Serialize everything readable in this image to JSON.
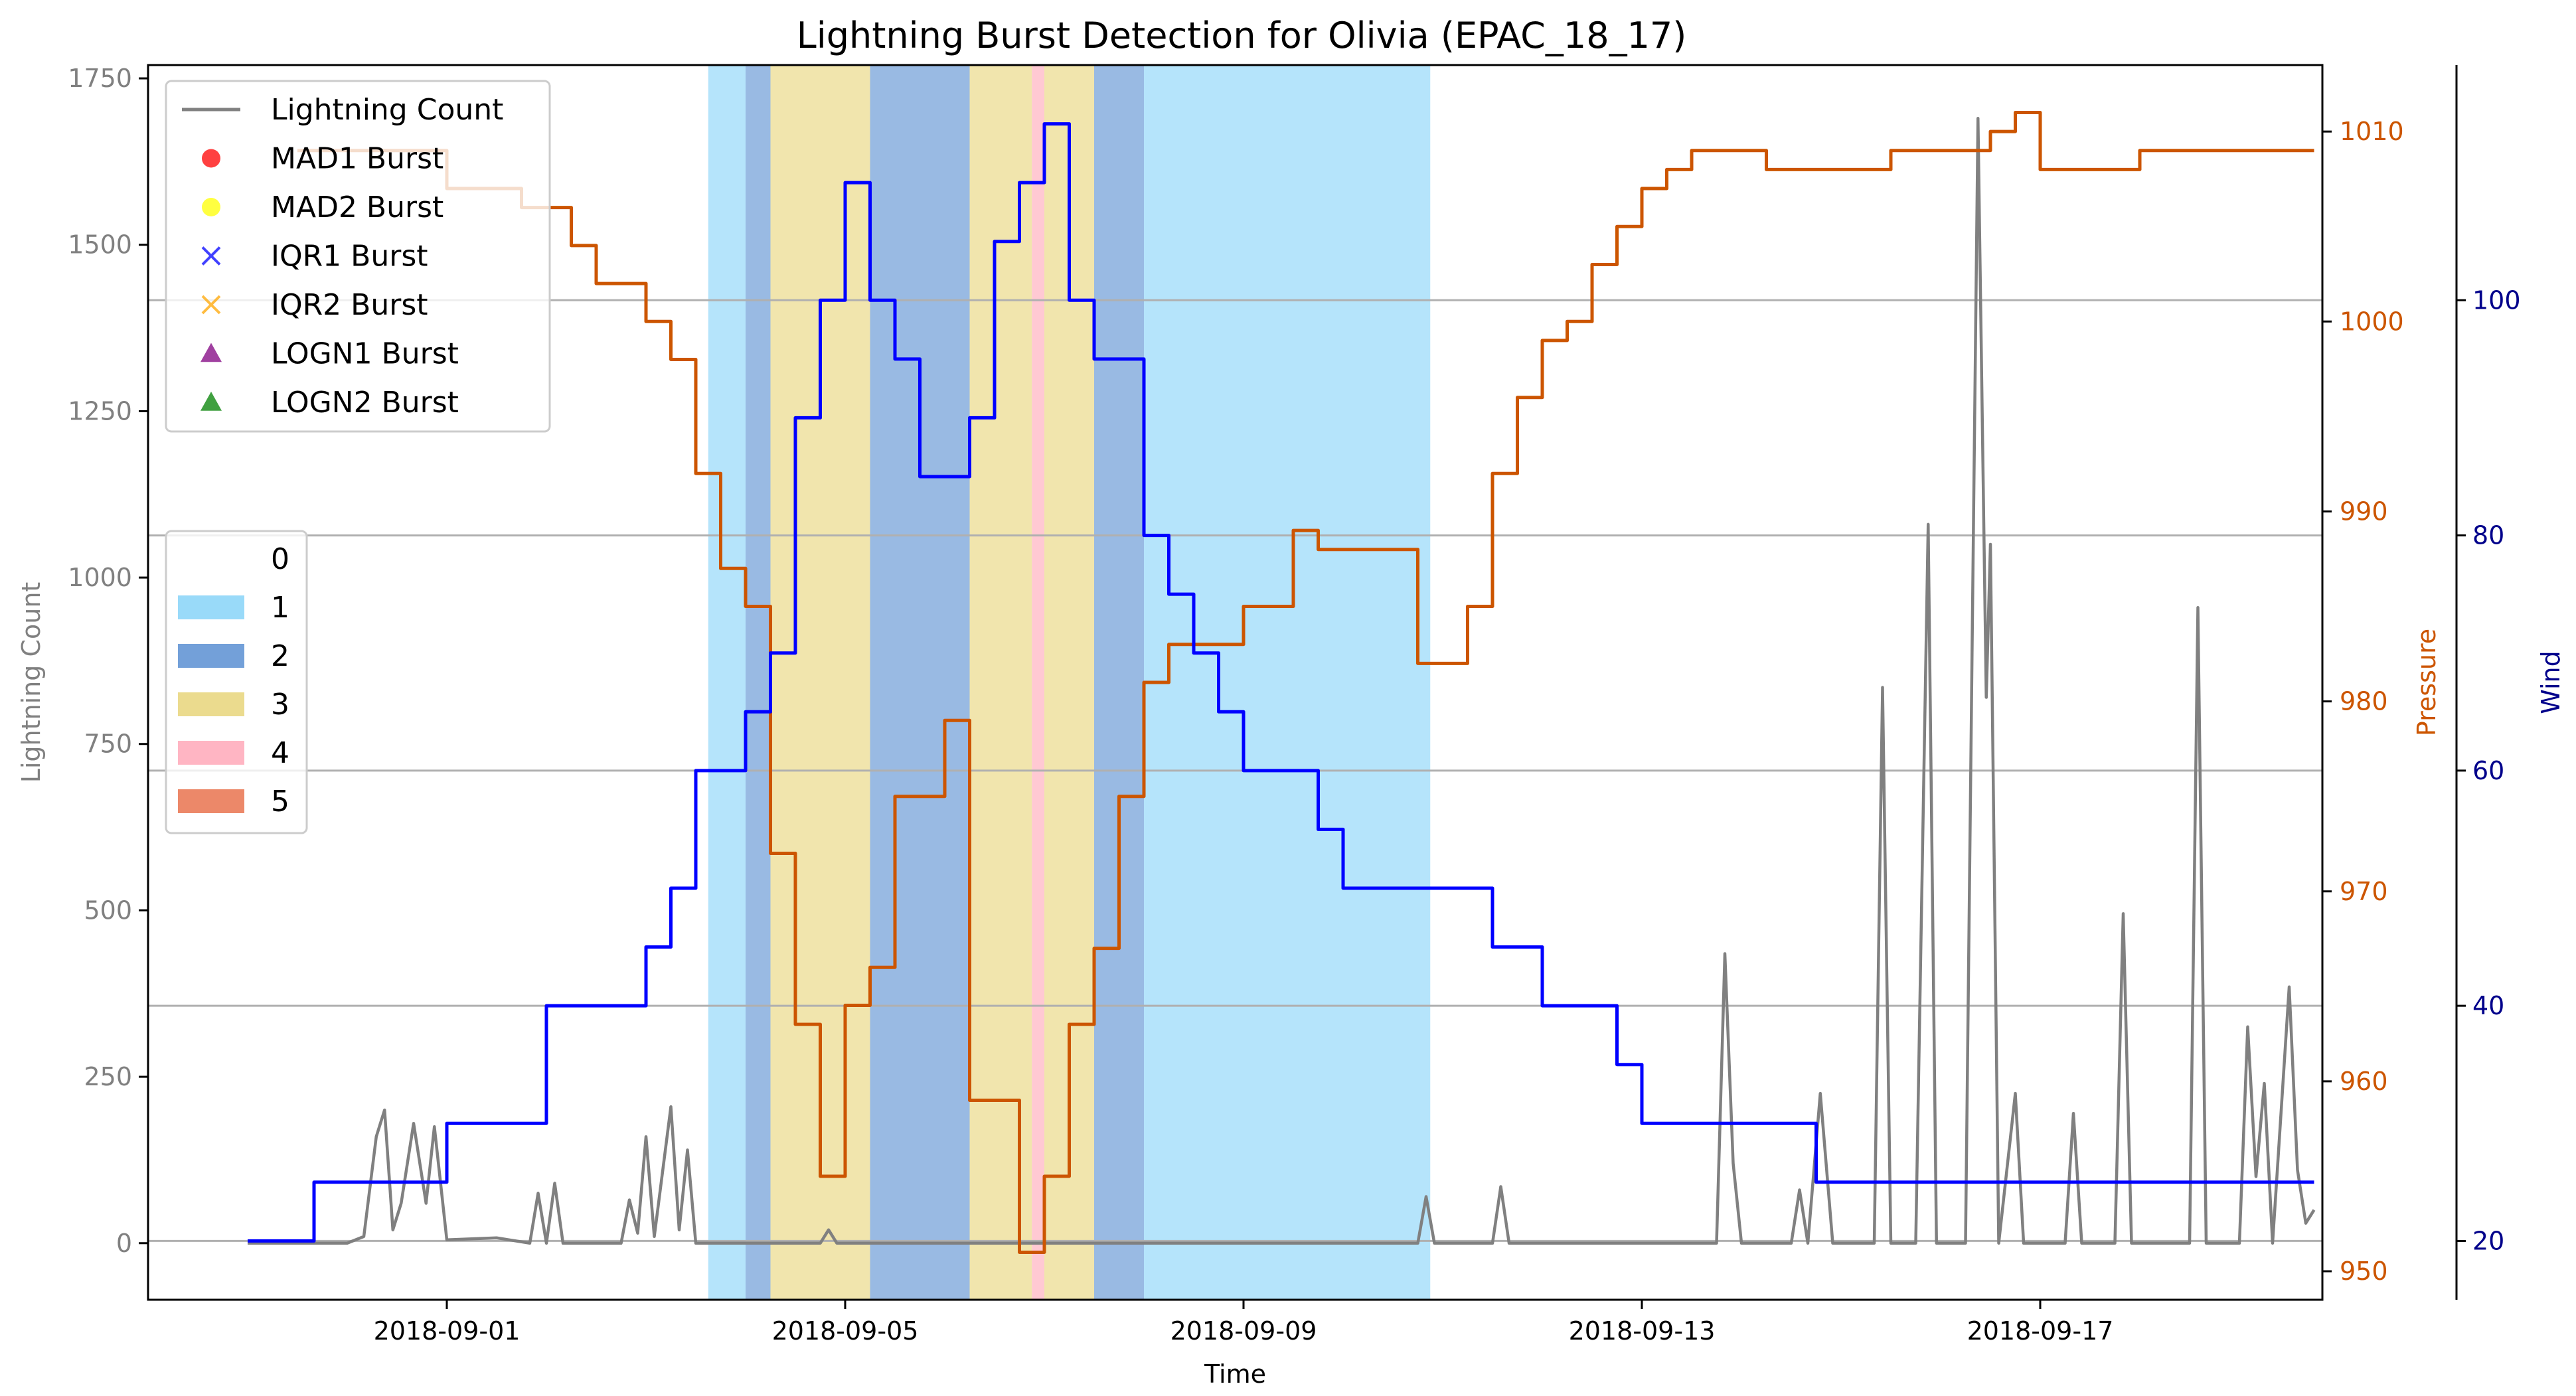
{
  "chart_data": {
    "type": "line",
    "title": "Lightning Burst Detection for Olivia (EPAC_18_17)",
    "xlabel": "Time",
    "ylabel_left": "Lightning Count",
    "ylabel_pressure": "Pressure",
    "ylabel_wind": "Wind",
    "x_range_days": [
      "2018-08-29T00:00",
      "2018-09-19T20:00"
    ],
    "x_ticks": [
      "2018-09-01",
      "2018-09-05",
      "2018-09-09",
      "2018-09-13",
      "2018-09-17"
    ],
    "y_left": {
      "range": [
        -85,
        1770
      ],
      "ticks": [
        0,
        250,
        500,
        750,
        1000,
        1250,
        1500,
        1750
      ]
    },
    "y_pressure": {
      "range": [
        948.5,
        1013.5
      ],
      "ticks": [
        950,
        960,
        970,
        980,
        990,
        1000,
        1010
      ]
    },
    "y_wind": {
      "range": [
        15,
        120
      ],
      "ticks": [
        20,
        40,
        60,
        80,
        100
      ]
    },
    "grid": "horizontal lines at wind ticks",
    "colors": {
      "lightning": "#808080",
      "pressure": "#cc5500",
      "wind": "#0000ff",
      "pressure_axis": "#cc5500",
      "wind_axis": "#00008b",
      "left_axis": "#808080",
      "phase_1": "#87d3f8",
      "phase_2": "#5b8fd2",
      "phase_3": "#e8d57a",
      "phase_4": "#ffa8b8",
      "phase_5": "#e9734f"
    },
    "legend_series": {
      "placement": "upper-left",
      "entries": [
        {
          "label": "Lightning Count",
          "marker": "line",
          "color": "#808080"
        },
        {
          "label": "MAD1 Burst",
          "marker": "circle",
          "color": "#ff0000"
        },
        {
          "label": "MAD2 Burst",
          "marker": "circle",
          "color": "#ffff00"
        },
        {
          "label": "IQR1 Burst",
          "marker": "x",
          "color": "#0000ff"
        },
        {
          "label": "IQR2 Burst",
          "marker": "x",
          "color": "#ffa500"
        },
        {
          "label": "LOGN1 Burst",
          "marker": "triangle",
          "color": "#800080"
        },
        {
          "label": "LOGN2 Burst",
          "marker": "triangle",
          "color": "#008000"
        }
      ]
    },
    "legend_phases": {
      "placement": "center-left",
      "entries": [
        {
          "label": "0",
          "color": "none"
        },
        {
          "label": "1",
          "color": "#87d3f8"
        },
        {
          "label": "2",
          "color": "#5b8fd2"
        },
        {
          "label": "3",
          "color": "#e8d57a"
        },
        {
          "label": "4",
          "color": "#ffa8b8"
        },
        {
          "label": "5",
          "color": "#e9734f"
        }
      ]
    },
    "phase_bands": [
      {
        "phase": 1,
        "start": "2018-09-03T15:00",
        "end": "2018-09-04T00:00"
      },
      {
        "phase": 2,
        "start": "2018-09-04T00:00",
        "end": "2018-09-04T06:00"
      },
      {
        "phase": 3,
        "start": "2018-09-04T06:00",
        "end": "2018-09-05T06:00"
      },
      {
        "phase": 2,
        "start": "2018-09-05T06:00",
        "end": "2018-09-06T06:00"
      },
      {
        "phase": 3,
        "start": "2018-09-06T06:00",
        "end": "2018-09-06T21:00"
      },
      {
        "phase": 4,
        "start": "2018-09-06T21:00",
        "end": "2018-09-07T00:00"
      },
      {
        "phase": 3,
        "start": "2018-09-07T00:00",
        "end": "2018-09-07T12:00"
      },
      {
        "phase": 2,
        "start": "2018-09-07T12:00",
        "end": "2018-09-08T00:00"
      },
      {
        "phase": 1,
        "start": "2018-09-08T00:00",
        "end": "2018-09-10T21:00"
      }
    ],
    "series": [
      {
        "name": "Wind",
        "axis": "wind",
        "step": true,
        "points": [
          [
            "2018-08-30T00:00",
            20
          ],
          [
            "2018-08-30T16:00",
            25
          ],
          [
            "2018-08-31T24:00",
            30
          ],
          [
            "2018-09-02T00:00",
            40
          ],
          [
            "2018-09-03T00:00",
            45
          ],
          [
            "2018-09-03T06:00",
            50
          ],
          [
            "2018-09-03T12:00",
            60
          ],
          [
            "2018-09-04T00:00",
            65
          ],
          [
            "2018-09-04T06:00",
            70
          ],
          [
            "2018-09-04T12:00",
            90
          ],
          [
            "2018-09-04T18:00",
            100
          ],
          [
            "2018-09-05T00:00",
            110
          ],
          [
            "2018-09-05T06:00",
            100
          ],
          [
            "2018-09-05T12:00",
            95
          ],
          [
            "2018-09-05T18:00",
            85
          ],
          [
            "2018-09-06T06:00",
            90
          ],
          [
            "2018-09-06T12:00",
            105
          ],
          [
            "2018-09-06T18:00",
            110
          ],
          [
            "2018-09-07T00:00",
            115
          ],
          [
            "2018-09-07T06:00",
            100
          ],
          [
            "2018-09-07T12:00",
            95
          ],
          [
            "2018-09-08T00:00",
            80
          ],
          [
            "2018-09-08T06:00",
            75
          ],
          [
            "2018-09-08T12:00",
            70
          ],
          [
            "2018-09-08T18:00",
            65
          ],
          [
            "2018-09-09T00:00",
            60
          ],
          [
            "2018-09-09T18:00",
            55
          ],
          [
            "2018-09-10T00:00",
            50
          ],
          [
            "2018-09-11T12:00",
            45
          ],
          [
            "2018-09-12T00:00",
            40
          ],
          [
            "2018-09-12T18:00",
            35
          ],
          [
            "2018-09-13T00:00",
            30
          ],
          [
            "2018-09-14T18:00",
            25
          ],
          [
            "2018-09-19T18:00",
            25
          ]
        ]
      },
      {
        "name": "Pressure",
        "axis": "pressure",
        "step": true,
        "points": [
          [
            "2018-08-30T12:00",
            1009
          ],
          [
            "2018-09-01T00:00",
            1007
          ],
          [
            "2018-09-01T18:00",
            1006
          ],
          [
            "2018-09-02T06:00",
            1004
          ],
          [
            "2018-09-02T12:00",
            1002
          ],
          [
            "2018-09-03T00:00",
            1000
          ],
          [
            "2018-09-03T06:00",
            998
          ],
          [
            "2018-09-03T12:00",
            992
          ],
          [
            "2018-09-03T18:00",
            987
          ],
          [
            "2018-09-04T00:00",
            985
          ],
          [
            "2018-09-04T06:00",
            972
          ],
          [
            "2018-09-04T12:00",
            963
          ],
          [
            "2018-09-04T18:00",
            955
          ],
          [
            "2018-09-05T00:00",
            964
          ],
          [
            "2018-09-05T06:00",
            966
          ],
          [
            "2018-09-05T12:00",
            975
          ],
          [
            "2018-09-06T00:00",
            979
          ],
          [
            "2018-09-06T06:00",
            959
          ],
          [
            "2018-09-06T18:00",
            951
          ],
          [
            "2018-09-07T00:00",
            955
          ],
          [
            "2018-09-07T06:00",
            963
          ],
          [
            "2018-09-07T12:00",
            967
          ],
          [
            "2018-09-07T18:00",
            975
          ],
          [
            "2018-09-08T00:00",
            981
          ],
          [
            "2018-09-08T06:00",
            983
          ],
          [
            "2018-09-09T00:00",
            985
          ],
          [
            "2018-09-09T12:00",
            989
          ],
          [
            "2018-09-09T18:00",
            988
          ],
          [
            "2018-09-10T18:00",
            982
          ],
          [
            "2018-09-11T06:00",
            985
          ],
          [
            "2018-09-11T12:00",
            992
          ],
          [
            "2018-09-11T18:00",
            996
          ],
          [
            "2018-09-12T00:00",
            999
          ],
          [
            "2018-09-12T06:00",
            1000
          ],
          [
            "2018-09-12T12:00",
            1003
          ],
          [
            "2018-09-12T18:00",
            1005
          ],
          [
            "2018-09-13T00:00",
            1007
          ],
          [
            "2018-09-13T06:00",
            1008
          ],
          [
            "2018-09-13T12:00",
            1009
          ],
          [
            "2018-09-14T06:00",
            1008
          ],
          [
            "2018-09-15T12:00",
            1009
          ],
          [
            "2018-09-16T12:00",
            1010
          ],
          [
            "2018-09-16T18:00",
            1011
          ],
          [
            "2018-09-17T00:00",
            1008
          ],
          [
            "2018-09-18T00:00",
            1009
          ],
          [
            "2018-09-19T18:00",
            1009
          ]
        ]
      },
      {
        "name": "Lightning Count",
        "axis": "left",
        "step": false,
        "points": [
          [
            "2018-08-30T00:00",
            0
          ],
          [
            "2018-08-31T00:00",
            0
          ],
          [
            "2018-08-31T04:00",
            10
          ],
          [
            "2018-08-31T07:00",
            160
          ],
          [
            "2018-08-31T09:00",
            200
          ],
          [
            "2018-08-31T11:00",
            20
          ],
          [
            "2018-08-31T13:00",
            60
          ],
          [
            "2018-08-31T16:00",
            180
          ],
          [
            "2018-08-31T19:00",
            60
          ],
          [
            "2018-08-31T21:00",
            175
          ],
          [
            "2018-09-01T00:00",
            5
          ],
          [
            "2018-09-01T12:00",
            8
          ],
          [
            "2018-09-01T20:00",
            0
          ],
          [
            "2018-09-01T22:00",
            75
          ],
          [
            "2018-09-02T00:00",
            0
          ],
          [
            "2018-09-02T02:00",
            90
          ],
          [
            "2018-09-02T04:00",
            0
          ],
          [
            "2018-09-02T18:00",
            0
          ],
          [
            "2018-09-02T20:00",
            65
          ],
          [
            "2018-09-02T22:00",
            15
          ],
          [
            "2018-09-03T00:00",
            160
          ],
          [
            "2018-09-03T02:00",
            10
          ],
          [
            "2018-09-03T06:00",
            205
          ],
          [
            "2018-09-03T08:00",
            20
          ],
          [
            "2018-09-03T10:00",
            140
          ],
          [
            "2018-09-03T12:00",
            0
          ],
          [
            "2018-09-04T18:00",
            0
          ],
          [
            "2018-09-04T20:00",
            20
          ],
          [
            "2018-09-04T22:00",
            0
          ],
          [
            "2018-09-10T18:00",
            0
          ],
          [
            "2018-09-10T20:00",
            70
          ],
          [
            "2018-09-10T22:00",
            0
          ],
          [
            "2018-09-11T12:00",
            0
          ],
          [
            "2018-09-11T14:00",
            85
          ],
          [
            "2018-09-11T16:00",
            0
          ],
          [
            "2018-09-13T18:00",
            0
          ],
          [
            "2018-09-13T20:00",
            435
          ],
          [
            "2018-09-13T22:00",
            120
          ],
          [
            "2018-09-14T00:00",
            0
          ],
          [
            "2018-09-14T12:00",
            0
          ],
          [
            "2018-09-14T14:00",
            80
          ],
          [
            "2018-09-14T16:00",
            0
          ],
          [
            "2018-09-14T19:00",
            225
          ],
          [
            "2018-09-14T22:00",
            0
          ],
          [
            "2018-09-15T08:00",
            0
          ],
          [
            "2018-09-15T10:00",
            835
          ],
          [
            "2018-09-15T12:00",
            0
          ],
          [
            "2018-09-15T18:00",
            0
          ],
          [
            "2018-09-15T21:00",
            1080
          ],
          [
            "2018-09-15T23:00",
            0
          ],
          [
            "2018-09-16T06:00",
            0
          ],
          [
            "2018-09-16T09:00",
            1690
          ],
          [
            "2018-09-16T11:00",
            820
          ],
          [
            "2018-09-16T12:00",
            1050
          ],
          [
            "2018-09-16T14:00",
            0
          ],
          [
            "2018-09-16T18:00",
            225
          ],
          [
            "2018-09-16T20:00",
            0
          ],
          [
            "2018-09-17T06:00",
            0
          ],
          [
            "2018-09-17T08:00",
            195
          ],
          [
            "2018-09-17T10:00",
            0
          ],
          [
            "2018-09-17T18:00",
            0
          ],
          [
            "2018-09-17T20:00",
            495
          ],
          [
            "2018-09-17T22:00",
            0
          ],
          [
            "2018-09-18T12:00",
            0
          ],
          [
            "2018-09-18T14:00",
            955
          ],
          [
            "2018-09-18T16:00",
            0
          ],
          [
            "2018-09-19T00:00",
            0
          ],
          [
            "2018-09-19T02:00",
            325
          ],
          [
            "2018-09-19T04:00",
            100
          ],
          [
            "2018-09-19T06:00",
            240
          ],
          [
            "2018-09-19T08:00",
            0
          ],
          [
            "2018-09-19T12:00",
            385
          ],
          [
            "2018-09-19T14:00",
            110
          ],
          [
            "2018-09-19T16:00",
            30
          ],
          [
            "2018-09-19T18:00",
            50
          ]
        ]
      }
    ]
  }
}
